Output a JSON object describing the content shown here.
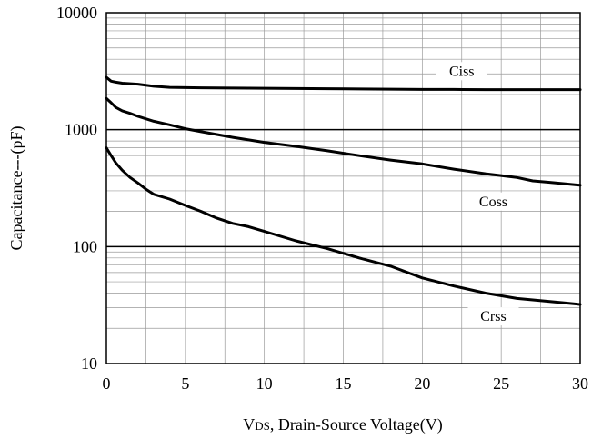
{
  "chart_data": {
    "type": "line",
    "title": "",
    "xlabel": "VDS, Drain-Source Voltage(V)",
    "xlabel_parts": {
      "v": "V",
      "sub": "DS",
      "rest": ", Drain-Source Voltage(V)"
    },
    "ylabel": "Capacitance---(pF)",
    "xlim": [
      0,
      30
    ],
    "ylim": [
      10,
      10000
    ],
    "y_scale": "log",
    "grid": true,
    "legend": "inline",
    "x_ticks": [
      "0",
      "5",
      "10",
      "15",
      "20",
      "25",
      "30"
    ],
    "y_ticks": [
      "10",
      "100",
      "1000",
      "10000"
    ],
    "line_color": "#000000",
    "series": [
      {
        "name": "Ciss",
        "label_pos": {
          "x": 22.5,
          "y": 3000
        },
        "x": [
          0,
          0.3,
          0.6,
          1,
          2,
          3,
          4,
          6,
          8,
          10,
          12,
          14,
          16,
          18,
          20,
          22,
          24,
          26,
          28,
          30
        ],
        "y": [
          2800,
          2600,
          2550,
          2500,
          2450,
          2350,
          2300,
          2280,
          2270,
          2260,
          2250,
          2240,
          2230,
          2220,
          2210,
          2210,
          2200,
          2200,
          2200,
          2200
        ]
      },
      {
        "name": "Coss",
        "label_pos": {
          "x": 24.5,
          "y": 230
        },
        "x": [
          0,
          0.3,
          0.6,
          1,
          1.5,
          2,
          3,
          4,
          5,
          6,
          8,
          10,
          12,
          14,
          16,
          18,
          20,
          22,
          24,
          26,
          27,
          28,
          29,
          30
        ],
        "y": [
          1850,
          1700,
          1550,
          1450,
          1380,
          1300,
          1180,
          1100,
          1020,
          960,
          860,
          780,
          720,
          660,
          600,
          550,
          510,
          460,
          420,
          390,
          365,
          355,
          345,
          335
        ]
      },
      {
        "name": "Crss",
        "label_pos": {
          "x": 24.5,
          "y": 24
        },
        "x": [
          0,
          0.3,
          0.6,
          1,
          1.5,
          2,
          2.5,
          3,
          4,
          5,
          6,
          7,
          8,
          9,
          10,
          12,
          14,
          16,
          18,
          20,
          22,
          24,
          26,
          27,
          28,
          29,
          30
        ],
        "y": [
          700,
          600,
          520,
          450,
          390,
          350,
          310,
          280,
          255,
          225,
          200,
          175,
          158,
          148,
          135,
          112,
          96,
          80,
          68,
          54,
          46,
          40,
          36,
          35,
          34,
          33,
          32
        ]
      }
    ]
  }
}
